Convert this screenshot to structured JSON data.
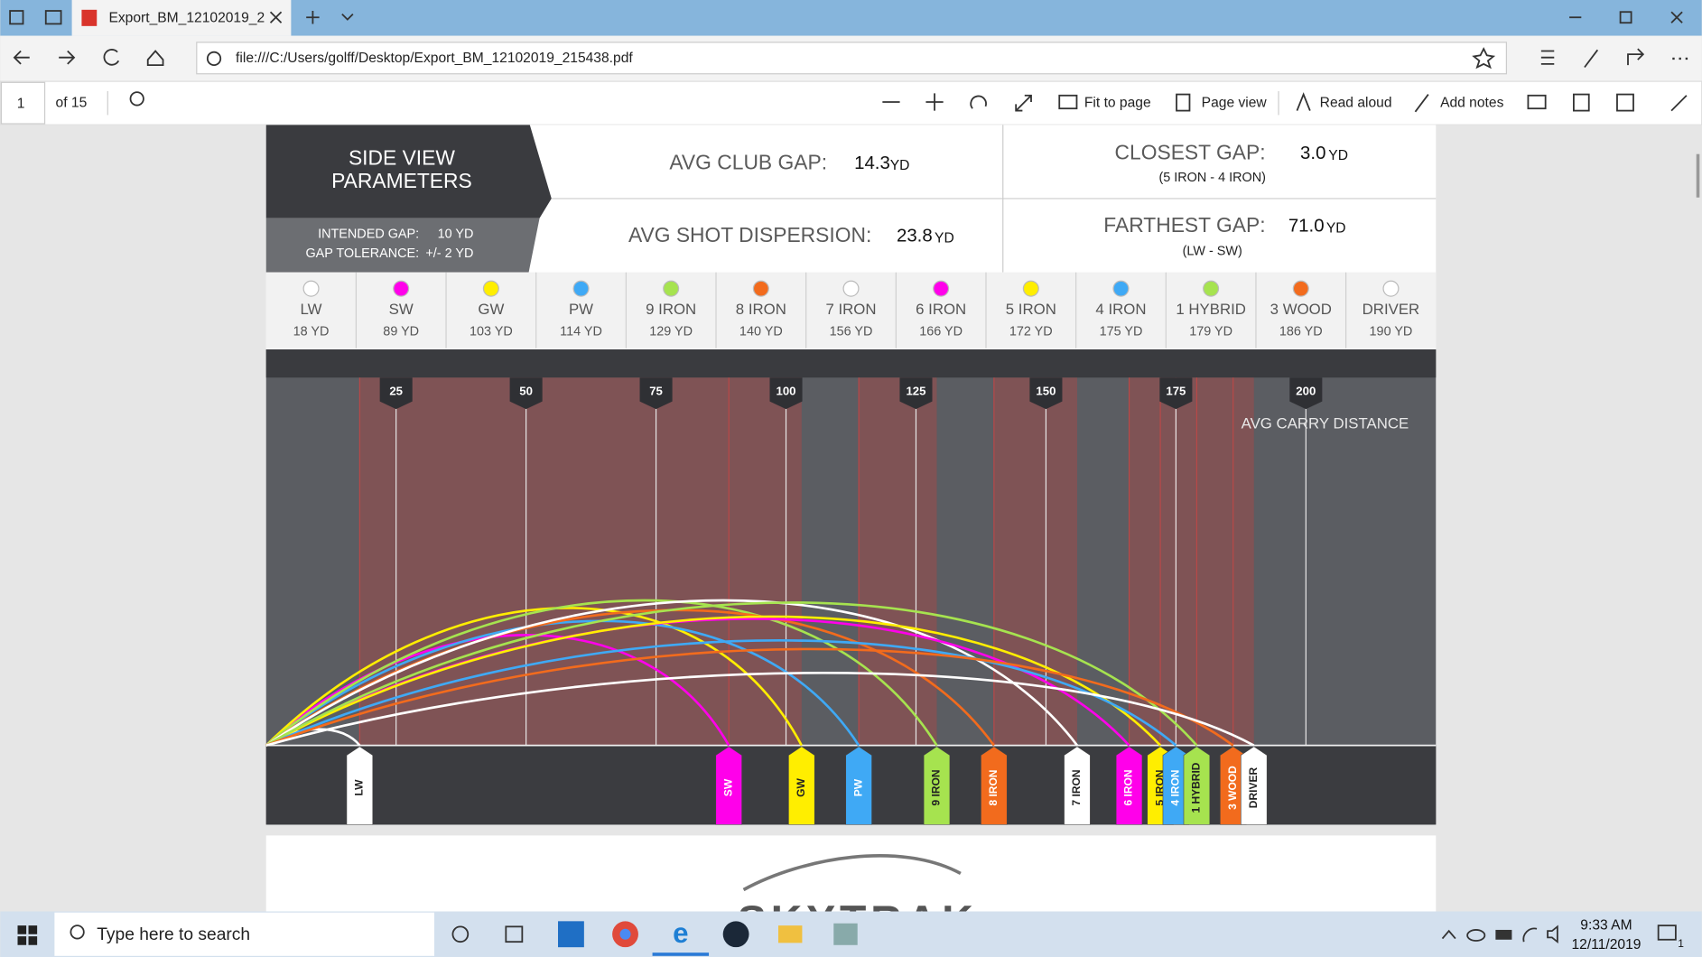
{
  "browser": {
    "tab_title": "Export_BM_12102019_2",
    "url": "file:///C:/Users/golff/Desktop/Export_BM_12102019_215438.pdf"
  },
  "pdf_toolbar": {
    "page": "1",
    "page_count": "of 15",
    "fit_to_page": "Fit to page",
    "page_view": "Page view",
    "read_aloud": "Read aloud",
    "add_notes": "Add notes"
  },
  "report": {
    "title_lines": [
      "SIDE VIEW",
      "PARAMETERS"
    ],
    "intended_gap": {
      "label": "INTENDED GAP:",
      "value": 10,
      "value_label": "10 YD"
    },
    "gap_tolerance": {
      "label": "GAP TOLERANCE:",
      "value": 2,
      "value_label": "+/- 2 YD"
    },
    "avg_club_gap": {
      "label": "AVG CLUB GAP:",
      "value": "14.3",
      "unit": "YD"
    },
    "closest_gap": {
      "label": "CLOSEST GAP:",
      "value": "3.0",
      "unit": "YD",
      "clubs": "(5 IRON - 4 IRON)"
    },
    "avg_shot_dispersion": {
      "label": "AVG SHOT DISPERSION:",
      "value": "23.8",
      "unit": "YD"
    },
    "farthest_gap": {
      "label": "FARTHEST GAP:",
      "value": "71.0",
      "unit": "YD",
      "clubs": "(LW - SW)"
    },
    "chart": {
      "axis_label": "AVG CARRY DISTANCE",
      "xlim": [
        0,
        225
      ],
      "xticks": [
        25,
        50,
        75,
        100,
        125,
        150,
        175,
        200
      ],
      "clubs": [
        {
          "name": "LW",
          "color": "#ffffff",
          "carry": 18,
          "carry_label": "18 YD"
        },
        {
          "name": "SW",
          "color": "#ff00ea",
          "carry": 89,
          "carry_label": "89 YD"
        },
        {
          "name": "GW",
          "color": "#ffee00",
          "carry": 103,
          "carry_label": "103 YD"
        },
        {
          "name": "PW",
          "color": "#3fa9f5",
          "carry": 114,
          "carry_label": "114 YD"
        },
        {
          "name": "9 IRON",
          "color": "#a6e34f",
          "carry": 129,
          "carry_label": "129 YD"
        },
        {
          "name": "8 IRON",
          "color": "#f26b1d",
          "carry": 140,
          "carry_label": "140 YD"
        },
        {
          "name": "7 IRON",
          "color": "#ffffff",
          "carry": 156,
          "carry_label": "156 YD"
        },
        {
          "name": "6 IRON",
          "color": "#ff00ea",
          "carry": 166,
          "carry_label": "166 YD"
        },
        {
          "name": "5 IRON",
          "color": "#ffee00",
          "carry": 172,
          "carry_label": "172 YD"
        },
        {
          "name": "4 IRON",
          "color": "#3fa9f5",
          "carry": 175,
          "carry_label": "175 YD"
        },
        {
          "name": "1 HYBRID",
          "color": "#a6e34f",
          "carry": 179,
          "carry_label": "179 YD"
        },
        {
          "name": "3 WOOD",
          "color": "#f26b1d",
          "carry": 186,
          "carry_label": "186 YD"
        },
        {
          "name": "DRIVER",
          "color": "#ffffff",
          "carry": 190,
          "carry_label": "190 YD"
        }
      ]
    },
    "logo": "SKYTRAK"
  },
  "taskbar": {
    "search": "Type here to search",
    "time": "9:33 AM",
    "date": "12/11/2019",
    "notifications": "1"
  }
}
